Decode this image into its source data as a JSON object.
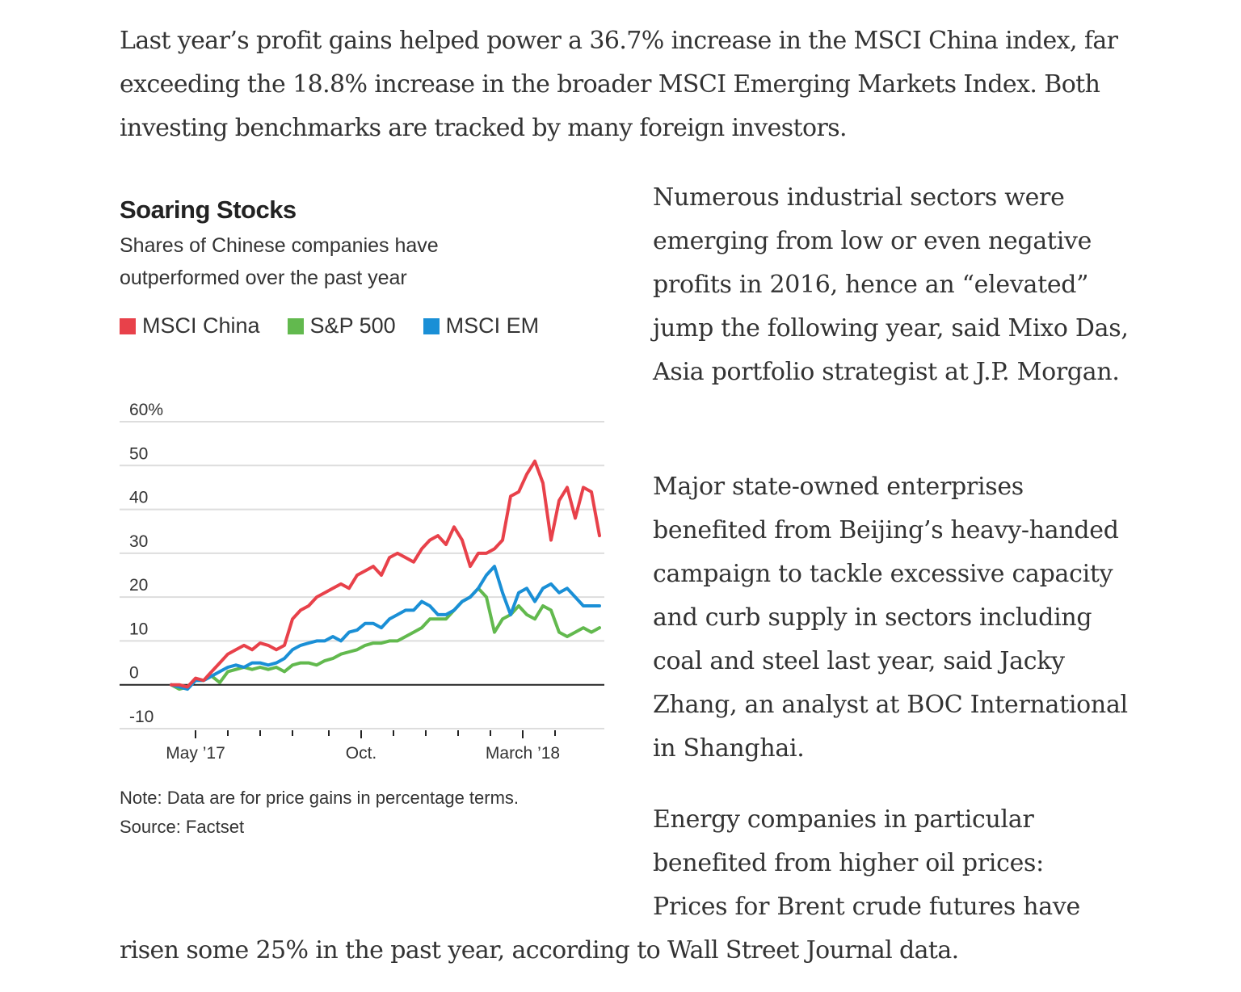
{
  "article": {
    "intro": "Last year’s profit gains helped power a 36.7% increase in the MSCI China index, far exceeding the 18.8% increase in the broader MSCI Emerging Markets Index. Both investing benchmarks are tracked by many foreign investors.",
    "paragraphs": [
      "Numerous industrial sectors were emerging from low or even negative profits in 2016, hence an “elevated” jump the following year, said Mixo Das, Asia portfolio strategist at J.P. Morgan.",
      "Major state-owned enterprises benefited from Beijing’s heavy-handed campaign to tackle excessive capacity and curb supply in sectors including coal and steel last year, said Jacky Zhang, an analyst at BOC International in Shanghai.",
      "Energy companies in particular benefited from higher oil prices: Prices for Brent crude futures have"
    ],
    "tail": "risen some 25% in the past year, according to Wall Street Journal data."
  },
  "chart_data": {
    "type": "line",
    "title": "Soaring Stocks",
    "subtitle": "Shares of Chinese companies have outperformed over the past year",
    "note": "Note: Data are for price gains in percentage terms.",
    "source": "Source: Factset",
    "xlabel": "",
    "ylabel": "",
    "ylim": [
      -10,
      60
    ],
    "yticks": [
      60,
      50,
      40,
      30,
      20,
      10,
      0,
      -10
    ],
    "ytick_labels": [
      "60%",
      "50",
      "40",
      "30",
      "20",
      "10",
      "0",
      "-10"
    ],
    "xlim": [
      0,
      53
    ],
    "xtick_positions": [
      3,
      7,
      11,
      15,
      19.5,
      23.5,
      27.5,
      31.5,
      35.5,
      39.5,
      43.5,
      47.5
    ],
    "xtick_labels": [
      {
        "pos": 3,
        "label": "May ’17"
      },
      {
        "pos": 23.5,
        "label": "Oct."
      },
      {
        "pos": 43.5,
        "label": "March ’18"
      }
    ],
    "grid": true,
    "legend": "top-left",
    "colors": {
      "MSCI China": "#e8414a",
      "S&P 500": "#62b94e",
      "MSCI EM": "#1a8fd6"
    },
    "x": [
      0,
      1,
      2,
      3,
      4,
      5,
      6,
      7,
      8,
      9,
      10,
      11,
      12,
      13,
      14,
      15,
      16,
      17,
      18,
      19,
      20,
      21,
      22,
      23,
      24,
      25,
      26,
      27,
      28,
      29,
      30,
      31,
      32,
      33,
      34,
      35,
      36,
      37,
      38,
      39,
      40,
      41,
      42,
      43,
      44,
      45,
      46,
      47,
      48,
      49,
      50,
      51,
      52,
      53
    ],
    "series": [
      {
        "name": "MSCI China",
        "values": [
          0,
          0,
          -0.5,
          1.5,
          1,
          3,
          5,
          7,
          8,
          9,
          8,
          9.5,
          9,
          8,
          9,
          15,
          17,
          18,
          20,
          21,
          22,
          23,
          22,
          25,
          26,
          27,
          25,
          29,
          30,
          29,
          28,
          31,
          33,
          34,
          32,
          36,
          33,
          27,
          30,
          30,
          31,
          33,
          43,
          44,
          48,
          51,
          46,
          33,
          42,
          45,
          38,
          45,
          44,
          34
        ]
      },
      {
        "name": "S&P 500",
        "values": [
          0,
          -1,
          -0.5,
          1,
          1,
          2,
          0.5,
          3,
          3.5,
          4,
          3.5,
          4,
          3.5,
          4,
          3,
          4.5,
          5,
          5,
          4.5,
          5.5,
          6,
          7,
          7.5,
          8,
          9,
          9.5,
          9.5,
          10,
          10,
          11,
          12,
          13,
          15,
          15,
          15,
          17,
          19,
          20,
          22,
          20,
          12,
          15,
          16,
          18,
          16,
          15,
          18,
          17,
          12,
          11,
          12,
          13,
          12,
          13
        ]
      },
      {
        "name": "MSCI EM",
        "values": [
          0,
          -0.5,
          -1,
          1,
          1,
          2,
          3,
          4,
          4.5,
          4,
          5,
          5,
          4.5,
          5,
          6,
          8,
          9,
          9.5,
          10,
          10,
          11,
          10,
          12,
          12.5,
          14,
          14,
          13,
          15,
          16,
          17,
          17,
          19,
          18,
          16,
          16,
          17,
          19,
          20,
          22,
          25,
          27,
          21,
          16,
          21,
          22,
          19,
          22,
          23,
          21,
          22,
          20,
          18,
          18,
          18
        ]
      }
    ]
  }
}
